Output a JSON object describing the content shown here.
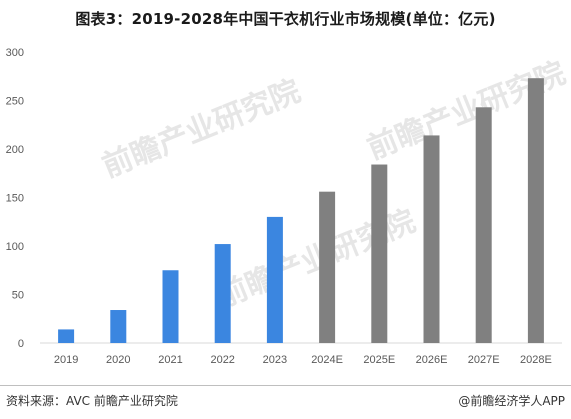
{
  "title": "图表3：2019-2028年中国干衣机行业市场规模(单位：亿元)",
  "source": "资料来源：AVC 前瞻产业研究院",
  "brand": "@前瞻经济学人APP",
  "watermark": "前瞻产业研究院",
  "chart_data": {
    "type": "bar",
    "title": "图表3：2019-2028年中国干衣机行业市场规模(单位：亿元)",
    "categories": [
      "2019",
      "2020",
      "2021",
      "2022",
      "2023",
      "2024E",
      "2025E",
      "2026E",
      "2027E",
      "2028E"
    ],
    "values": [
      14,
      34,
      75,
      102,
      130,
      156,
      184,
      214,
      243,
      273
    ],
    "colors": [
      "#3b86e0",
      "#3b86e0",
      "#3b86e0",
      "#3b86e0",
      "#3b86e0",
      "#808080",
      "#808080",
      "#808080",
      "#808080",
      "#808080"
    ],
    "yticks": [
      0,
      50,
      100,
      150,
      200,
      250,
      300
    ],
    "ylim": [
      0,
      300
    ],
    "grid": false,
    "legend": "none"
  }
}
